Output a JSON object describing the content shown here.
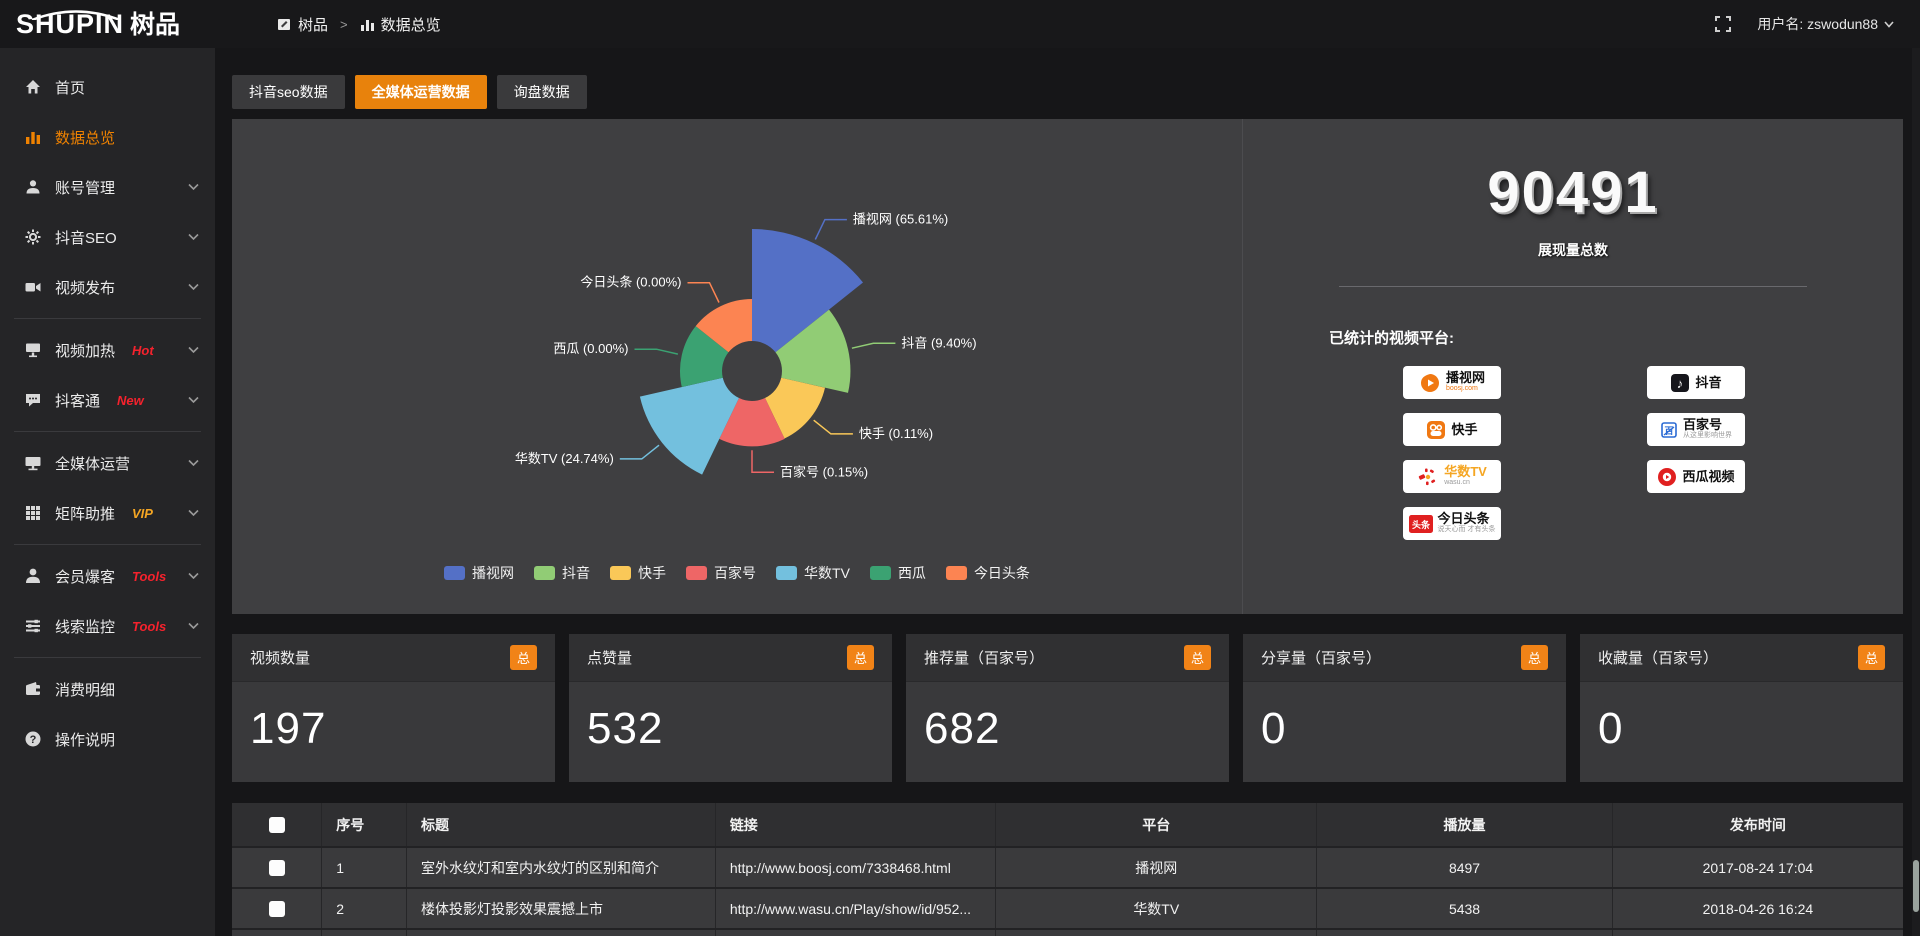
{
  "topbar": {
    "logo_main": "SHUPIN",
    "logo_sub": "树品",
    "breadcrumb": [
      {
        "label": "树品",
        "icon": "doc-icon"
      },
      {
        "label": "数据总览",
        "icon": "chart-icon"
      }
    ],
    "breadcrumb_separator": ">",
    "username": "用户名: zswodun88"
  },
  "sidebar": {
    "items": [
      {
        "id": "home",
        "label": "首页",
        "icon": "home",
        "active": false,
        "chevron": false
      },
      {
        "id": "data-overview",
        "label": "数据总览",
        "icon": "chart",
        "active": true,
        "chevron": false
      },
      {
        "id": "account-manage",
        "label": "账号管理",
        "icon": "user",
        "chevron": true
      },
      {
        "id": "douyin-seo",
        "label": "抖音SEO",
        "icon": "gear",
        "chevron": true
      },
      {
        "id": "video-publish",
        "label": "视频发布",
        "icon": "video",
        "chevron": true
      },
      {
        "divider": true
      },
      {
        "id": "video-heat",
        "label": "视频加热",
        "icon": "monitor",
        "tag": "Hot",
        "tag_color": "#f5222d",
        "chevron": true
      },
      {
        "id": "doukertong",
        "label": "抖客通",
        "icon": "chat",
        "tag": "New",
        "tag_color": "#f5222d",
        "chevron": true
      },
      {
        "divider": true
      },
      {
        "id": "all-media-operation",
        "label": "全媒体运营",
        "icon": "display",
        "chevron": true
      },
      {
        "id": "matrix-boost",
        "label": "矩阵助推",
        "icon": "grid",
        "tag": "VIP",
        "tag_color": "#f5a623",
        "chevron": true
      },
      {
        "divider": true
      },
      {
        "id": "member-baoke",
        "label": "会员爆客",
        "icon": "user-solid",
        "tag": "Tools",
        "tag_color": "#f5222d",
        "chevron": true
      },
      {
        "id": "clue-monitor",
        "label": "线索监控",
        "icon": "sliders",
        "tag": "Tools",
        "tag_color": "#f5222d",
        "chevron": true
      },
      {
        "divider": true
      },
      {
        "id": "consume-detail",
        "label": "消费明细",
        "icon": "wallet",
        "chevron": false
      },
      {
        "id": "operation-guide",
        "label": "操作说明",
        "icon": "question",
        "chevron": false
      }
    ]
  },
  "tabs": [
    {
      "id": "douyin-seo-data",
      "label": "抖音seo数据",
      "active": false
    },
    {
      "id": "all-media-data",
      "label": "全媒体运营数据",
      "active": true
    },
    {
      "id": "inquiry-data",
      "label": "询盘数据",
      "active": false
    }
  ],
  "chart_data": {
    "type": "pie",
    "variant": "nightingale-rose",
    "title": "",
    "unit": "percent",
    "slices": [
      {
        "name": "播视网",
        "pct": 65.61,
        "color": "#5470c6"
      },
      {
        "name": "抖音",
        "pct": 9.4,
        "color": "#91cc75"
      },
      {
        "name": "快手",
        "pct": 0.11,
        "color": "#fac858"
      },
      {
        "name": "百家号",
        "pct": 0.15,
        "color": "#ee6666"
      },
      {
        "name": "华数TV",
        "pct": 24.74,
        "color": "#73c0de"
      },
      {
        "name": "西瓜",
        "pct": 0.0,
        "color": "#3ba272"
      },
      {
        "name": "今日头条",
        "pct": 0.0,
        "color": "#fc8452"
      }
    ],
    "legend": [
      "播视网",
      "抖音",
      "快手",
      "百家号",
      "华数TV",
      "西瓜",
      "今日头条"
    ],
    "legend_position": "bottom"
  },
  "overview": {
    "total_value": "90491",
    "total_label": "展现量总数",
    "platforms_label": "已统计的视频平台:",
    "platforms_left": [
      {
        "id": "boosj",
        "name": "播视网",
        "sub": "boosj.com"
      },
      {
        "id": "kuaishou",
        "name": "快手",
        "sub": ""
      },
      {
        "id": "wasu",
        "name": "华数TV",
        "sub": "wasu.cn"
      },
      {
        "id": "toutiao",
        "name": "今日头条",
        "sub": "说天心而 才有头条"
      }
    ],
    "platforms_right": [
      {
        "id": "douyin",
        "name": "抖音",
        "sub": ""
      },
      {
        "id": "baijiahao",
        "name": "百家号",
        "sub": "从这里影响世界"
      },
      {
        "id": "xigua",
        "name": "西瓜视频",
        "sub": ""
      }
    ]
  },
  "stat_cards": [
    {
      "label": "视频数量",
      "badge": "总",
      "value": "197"
    },
    {
      "label": "点赞量",
      "badge": "总",
      "value": "532"
    },
    {
      "label": "推荐量（百家号）",
      "badge": "总",
      "value": "682"
    },
    {
      "label": "分享量（百家号）",
      "badge": "总",
      "value": "0"
    },
    {
      "label": "收藏量（百家号）",
      "badge": "总",
      "value": "0"
    }
  ],
  "table": {
    "columns": [
      "序号",
      "标题",
      "链接",
      "平台",
      "播放量",
      "发布时间"
    ],
    "rows": [
      {
        "index": "1",
        "title": "室外水纹灯和室内水纹灯的区别和简介",
        "link": "http://www.boosj.com/7338468.html",
        "platform": "播视网",
        "plays": "8497",
        "time": "2017-08-24 17:04"
      },
      {
        "index": "2",
        "title": "楼体投影灯投影效果震撼上市",
        "link": "http://www.wasu.cn/Play/show/id/952...",
        "platform": "华数TV",
        "plays": "5438",
        "time": "2018-04-26 16:24"
      },
      {
        "index": "",
        "title": "",
        "link": "",
        "platform": "",
        "plays": "",
        "time": ""
      }
    ]
  },
  "colors": {
    "accent_orange": "#e8820c",
    "badge_orange": "#f18317",
    "sidebar_active": "#ef8201",
    "tag_red": "#f5222d",
    "tag_gold": "#f5a623",
    "panel_bg": "#3f3f41",
    "card_bg": "#39393b",
    "topbar_bg": "#18181a",
    "sidebar_bg": "#252527"
  }
}
